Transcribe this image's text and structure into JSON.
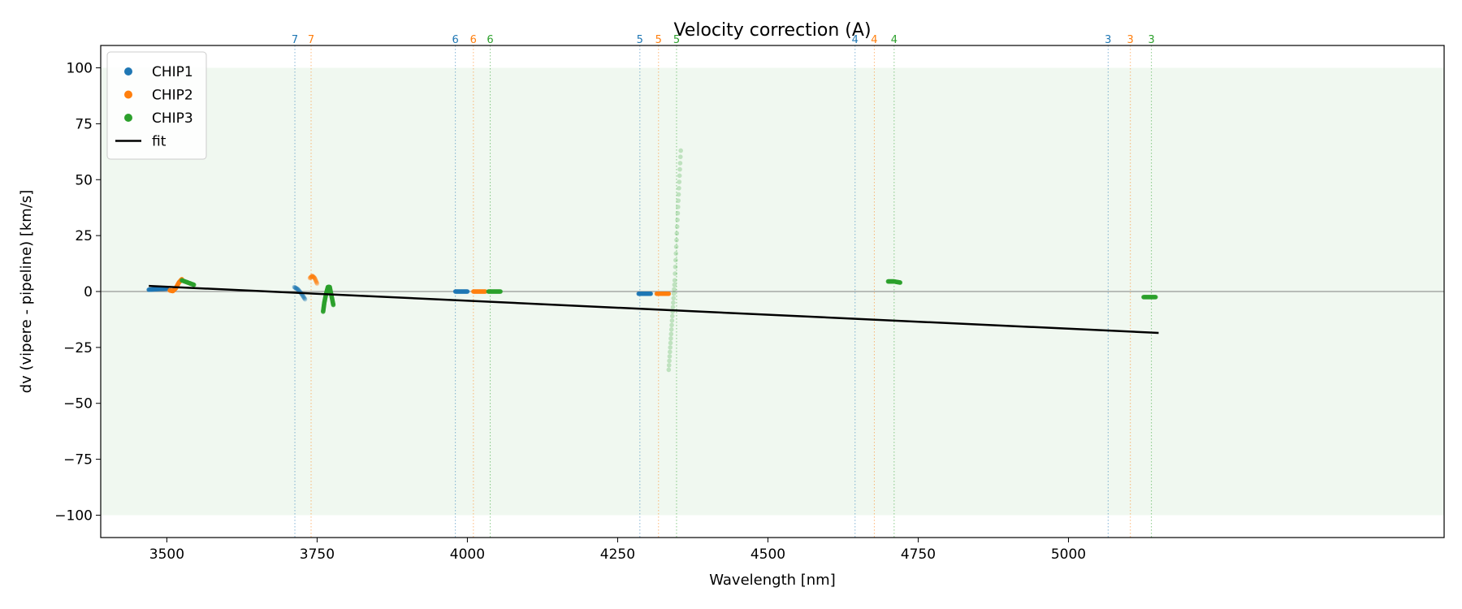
{
  "chart_data": {
    "type": "scatter",
    "title": "Velocity correction (A)",
    "xlabel": "Wavelength [nm]",
    "ylabel": "dv (vipere - pipeline) [km/s]",
    "xlim": [
      3390,
      5625
    ],
    "ylim": [
      -110,
      110
    ],
    "xticks": [
      3500,
      3750,
      4000,
      4250,
      4500,
      4750,
      5000
    ],
    "yticks": [
      100,
      75,
      50,
      25,
      0,
      -25,
      -50,
      -75,
      -100
    ],
    "ytick_labels": [
      "100",
      "75",
      "50",
      "25",
      "0",
      "−25",
      "−50",
      "−75",
      "−100"
    ],
    "band": {
      "y": [
        -100,
        100
      ],
      "color": "#2ca02c"
    },
    "zero_line": 0,
    "legend": {
      "placement": "top-left",
      "entries": [
        "CHIP1",
        "CHIP2",
        "CHIP3",
        "fit"
      ]
    },
    "colors": {
      "CHIP1": "#1f77b4",
      "CHIP2": "#ff7f0e",
      "CHIP3": "#2ca02c",
      "fit": "#000000"
    },
    "series": [
      {
        "name": "CHIP1",
        "segments": [
          {
            "x": [
              3470,
              3480,
              3490,
              3500
            ],
            "y": [
              0.8,
              1.0,
              1.2,
              1.3
            ]
          },
          {
            "x": [
              3712,
              3718,
              3724,
              3730
            ],
            "y": [
              2.0,
              1.0,
              -1.0,
              -3.5
            ],
            "faint": true
          },
          {
            "x": [
              3980,
              3990,
              4000
            ],
            "y": [
              0,
              0,
              0
            ]
          },
          {
            "x": [
              4285,
              4295,
              4305
            ],
            "y": [
              -1,
              -1,
              -1
            ]
          }
        ]
      },
      {
        "name": "CHIP2",
        "segments": [
          {
            "x": [
              3505,
              3510,
              3515,
              3520,
              3525
            ],
            "y": [
              0.5,
              0.2,
              1.5,
              4.0,
              5.5
            ]
          },
          {
            "x": [
              3738,
              3742,
              3746,
              3750
            ],
            "y": [
              6.0,
              7.0,
              6.0,
              3.5
            ],
            "faint": true
          },
          {
            "x": [
              4010,
              4020,
              4030
            ],
            "y": [
              0,
              0,
              0
            ]
          },
          {
            "x": [
              4315,
              4325,
              4335
            ],
            "y": [
              -1,
              -1,
              -1
            ]
          }
        ]
      },
      {
        "name": "CHIP3",
        "segments": [
          {
            "x": [
              3525,
              3535,
              3545
            ],
            "y": [
              5,
              4,
              3
            ]
          },
          {
            "x": [
              3760,
              3762,
              3765,
              3768,
              3771,
              3774,
              3777
            ],
            "y": [
              -9,
              -5,
              -1,
              2,
              2,
              -2,
              -6
            ]
          },
          {
            "x": [
              4035,
              4045,
              4055
            ],
            "y": [
              0,
              0,
              0
            ]
          },
          {
            "x": [
              4335,
              4340,
              4345,
              4350,
              4355
            ],
            "y": [
              -35,
              -15,
              5,
              35,
              63
            ],
            "faint": true
          },
          {
            "x": [
              4700,
              4710,
              4720
            ],
            "y": [
              4.5,
              4.5,
              4.0
            ]
          },
          {
            "x": [
              5125,
              5135,
              5145
            ],
            "y": [
              -2.5,
              -2.5,
              -2.5
            ]
          }
        ]
      }
    ],
    "fit": {
      "x": [
        3470,
        5150
      ],
      "y": [
        2.5,
        -18.5
      ]
    },
    "order_markers": [
      {
        "x": 3713,
        "label": "7",
        "chip": "CHIP1"
      },
      {
        "x": 3740,
        "label": "7",
        "chip": "CHIP2"
      },
      {
        "x": 3980,
        "label": "6",
        "chip": "CHIP1"
      },
      {
        "x": 4010,
        "label": "6",
        "chip": "CHIP2"
      },
      {
        "x": 4038,
        "label": "6",
        "chip": "CHIP3"
      },
      {
        "x": 4287,
        "label": "5",
        "chip": "CHIP1"
      },
      {
        "x": 4318,
        "label": "5",
        "chip": "CHIP2"
      },
      {
        "x": 4348,
        "label": "5",
        "chip": "CHIP3"
      },
      {
        "x": 4645,
        "label": "4",
        "chip": "CHIP1"
      },
      {
        "x": 4677,
        "label": "4",
        "chip": "CHIP2"
      },
      {
        "x": 4710,
        "label": "4",
        "chip": "CHIP3"
      },
      {
        "x": 5066,
        "label": "3",
        "chip": "CHIP1"
      },
      {
        "x": 5103,
        "label": "3",
        "chip": "CHIP2"
      },
      {
        "x": 5138,
        "label": "3",
        "chip": "CHIP3"
      }
    ]
  }
}
